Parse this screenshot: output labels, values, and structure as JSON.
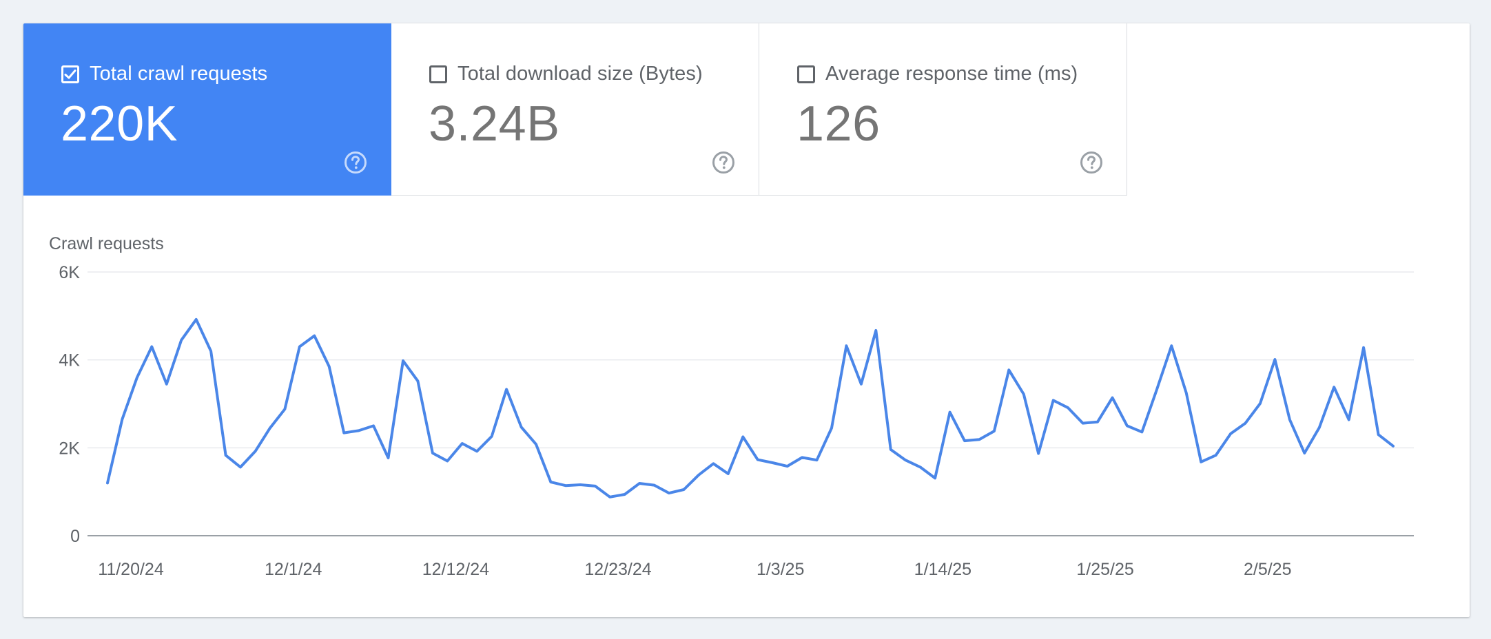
{
  "metrics": [
    {
      "label": "Total crawl requests",
      "value": "220K",
      "checked": true
    },
    {
      "label": "Total download size (Bytes)",
      "value": "3.24B",
      "checked": false
    },
    {
      "label": "Average response time (ms)",
      "value": "126",
      "checked": false
    }
  ],
  "icons": {
    "checkbox_checked": "checkbox-checked-icon",
    "checkbox_unchecked": "checkbox-unchecked-icon",
    "help": "help-circle-icon"
  },
  "colors": {
    "accent": "#4285f4",
    "line": "#4a86e8",
    "grid": "#e8eaed",
    "axis": "#9aa0a6",
    "text": "#5f6368"
  },
  "chart_data": {
    "type": "line",
    "title": "Crawl requests",
    "ylim": [
      0,
      6000
    ],
    "y_ticks": [
      {
        "value": 0,
        "label": "0"
      },
      {
        "value": 2000,
        "label": "2K"
      },
      {
        "value": 4000,
        "label": "4K"
      },
      {
        "value": 6000,
        "label": "6K"
      }
    ],
    "x_ticks": [
      "11/20/24",
      "12/1/24",
      "12/12/24",
      "12/23/24",
      "1/3/25",
      "1/14/25",
      "1/25/25",
      "2/5/25"
    ],
    "x_start_label": "11/20/24",
    "grid": true,
    "legend": "none",
    "series": [
      {
        "values": [
          1200,
          2650,
          3600,
          4300,
          3450,
          4450,
          4920,
          4200,
          1830,
          1560,
          1920,
          2450,
          2880,
          4300,
          4550,
          3850,
          2340,
          2390,
          2500,
          1770,
          3980,
          3520,
          1880,
          1700,
          2100,
          1920,
          2260,
          3330,
          2470,
          2080,
          1220,
          1140,
          1160,
          1130,
          880,
          940,
          1190,
          1150,
          970,
          1050,
          1380,
          1640,
          1410,
          2250,
          1730,
          1660,
          1580,
          1780,
          1720,
          2450,
          4320,
          3450,
          4670,
          1960,
          1720,
          1560,
          1310,
          2810,
          2160,
          2190,
          2380,
          3770,
          3220,
          1870,
          3080,
          2910,
          2560,
          2590,
          3140,
          2500,
          2360,
          3320,
          4320,
          3250,
          1680,
          1830,
          2320,
          2560,
          3010,
          4010,
          2640,
          1880,
          2460,
          3380,
          2640,
          4280,
          2300,
          2040
        ]
      }
    ]
  }
}
